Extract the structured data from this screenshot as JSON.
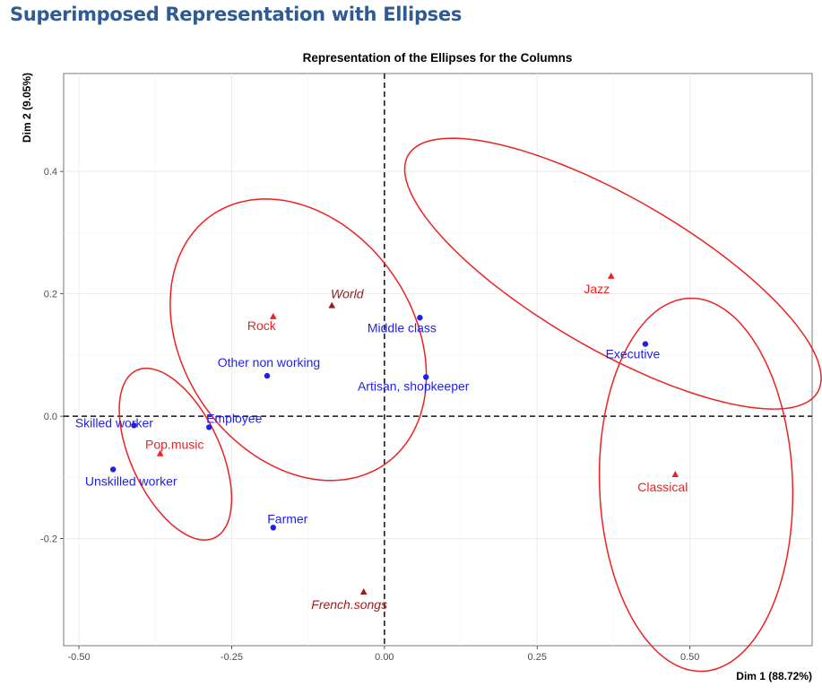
{
  "page": {
    "heading": "Superimposed Representation with Ellipses"
  },
  "colors": {
    "rows": "#1f1fe8",
    "columns": "#ee2020",
    "supplementary": "#9b1b1b",
    "ellipse": "#ee2020",
    "axis_line": "#111111",
    "grid": "#ebebeb"
  },
  "chart_data": {
    "type": "scatter",
    "title": "Representation of the Ellipses for the Columns",
    "xlabel": "Dim 1 (88.72%)",
    "ylabel": "Dim 2 (9.05%)",
    "xlim": [
      -0.525,
      0.7
    ],
    "ylim": [
      -0.375,
      0.56
    ],
    "x_ticks": [
      -0.5,
      -0.25,
      0,
      0.25,
      0.5
    ],
    "x_tick_labels": [
      "-0.50",
      "-0.25",
      "0.00",
      "0.25",
      "0.50"
    ],
    "y_ticks": [
      -0.2,
      0,
      0.2,
      0.4
    ],
    "y_tick_labels": [
      "-0.2",
      "0.0",
      "0.2",
      "0.4"
    ],
    "grid": true,
    "reference_lines": {
      "x": 0,
      "y": 0,
      "style": "dashed"
    },
    "series": [
      {
        "role": "rows",
        "marker": "circle",
        "color": "#1f1fe8",
        "points": [
          {
            "label": "Skilled worker",
            "x": -0.41,
            "y": -0.015
          },
          {
            "label": "Employee",
            "x": -0.287,
            "y": -0.018
          },
          {
            "label": "Unskilled worker",
            "x": -0.444,
            "y": -0.087
          },
          {
            "label": "Other non working",
            "x": -0.192,
            "y": 0.066
          },
          {
            "label": "Middle class",
            "x": 0.058,
            "y": 0.161
          },
          {
            "label": "Artisan, shopkeeper",
            "x": 0.068,
            "y": 0.064
          },
          {
            "label": "Farmer",
            "x": -0.182,
            "y": -0.182
          },
          {
            "label": "Executive",
            "x": 0.427,
            "y": 0.118
          }
        ]
      },
      {
        "role": "columns",
        "marker": "triangle",
        "color": "#ee2020",
        "points": [
          {
            "label": "Rock",
            "x": -0.182,
            "y": 0.163
          },
          {
            "label": "Pop.music",
            "x": -0.367,
            "y": -0.061
          },
          {
            "label": "Jazz",
            "x": 0.371,
            "y": 0.229
          },
          {
            "label": "Classical",
            "x": 0.476,
            "y": -0.095
          }
        ]
      },
      {
        "role": "supplementary",
        "marker": "triangle",
        "color": "#9b1b1b",
        "italic": true,
        "points": [
          {
            "label": "World",
            "x": -0.086,
            "y": 0.181
          },
          {
            "label": "French.songs",
            "x": -0.034,
            "y": -0.287
          }
        ]
      }
    ],
    "ellipses": [
      {
        "group": "Rock",
        "cx": -0.141,
        "cy": 0.125,
        "rx": 0.188,
        "ry": 0.248,
        "angle": 35
      },
      {
        "group": "Pop.music",
        "cx": -0.342,
        "cy": -0.062,
        "rx": 0.073,
        "ry": 0.151,
        "angle": 25
      },
      {
        "group": "Jazz",
        "cx": 0.374,
        "cy": 0.233,
        "rx": 0.124,
        "ry": 0.387,
        "angle": 60
      },
      {
        "group": "Classical",
        "cx": 0.51,
        "cy": -0.112,
        "rx": 0.158,
        "ry": 0.305,
        "angle": 2
      }
    ]
  }
}
